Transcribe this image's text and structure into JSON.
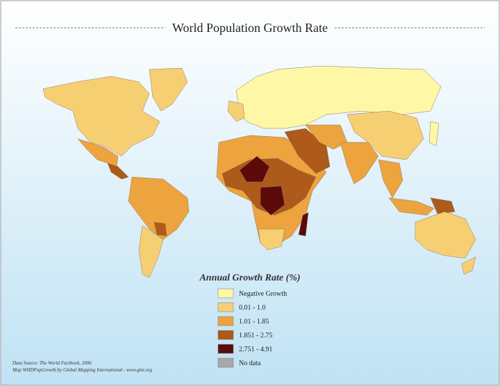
{
  "title": "World Population Growth Rate",
  "legend": {
    "title": "Annual Growth Rate (%)",
    "items": [
      {
        "label": "Negative Growth",
        "color": "#fdf7a6"
      },
      {
        "label": "0.01 - 1.0",
        "color": "#f7cf73"
      },
      {
        "label": "1.01 - 1.85",
        "color": "#eda33e"
      },
      {
        "label": "1.851 - 2.75",
        "color": "#ad5a1a"
      },
      {
        "label": "2.751 - 4.91",
        "color": "#5c0a0a"
      },
      {
        "label": "No data",
        "color": "#a7a7a7"
      }
    ]
  },
  "source": [
    "Data Source: The World Factbook, 2006",
    "Map WHDPopGrowth by Global Mapping International - www.gmi.org"
  ]
}
